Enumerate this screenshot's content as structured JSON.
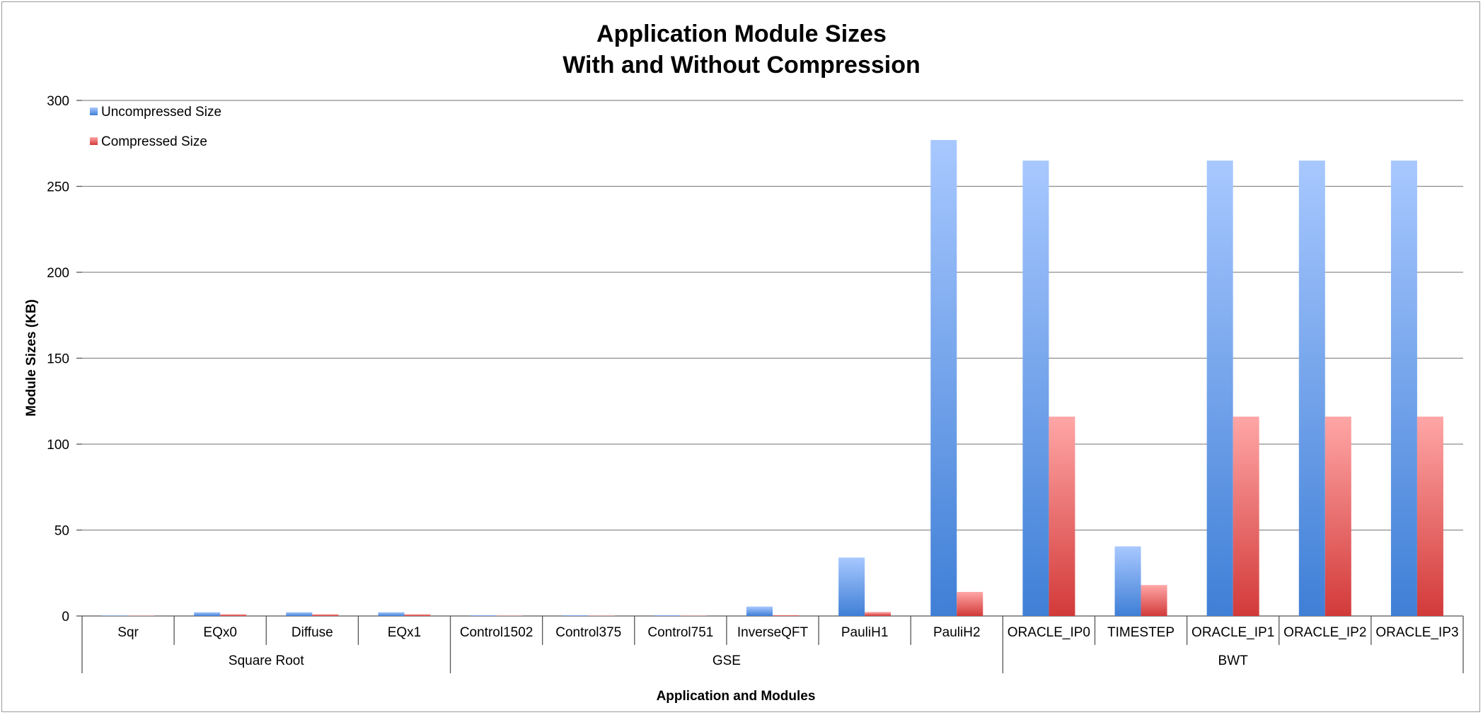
{
  "chart_data": {
    "type": "bar",
    "title": [
      "Application Module Sizes",
      "With and Without Compression"
    ],
    "xlabel": "Application and Modules",
    "ylabel": "Module Sizes (KB)",
    "ylim": [
      0,
      300
    ],
    "yticks": [
      0,
      50,
      100,
      150,
      200,
      250,
      300
    ],
    "grid": true,
    "legend_position": "top-left",
    "categories": [
      "Sqr",
      "EQx0",
      "Diffuse",
      "EQx1",
      "Control1502",
      "Control375",
      "Control751",
      "InverseQFT",
      "PauliH1",
      "PauliH2",
      "ORACLE_IP0",
      "TIMESTEP",
      "ORACLE_IP1",
      "ORACLE_IP2",
      "ORACLE_IP3"
    ],
    "groups": [
      {
        "name": "Square Root",
        "count": 4
      },
      {
        "name": "GSE",
        "count": 6
      },
      {
        "name": "BWT",
        "count": 5
      }
    ],
    "series": [
      {
        "name": "Uncompressed Size",
        "color": "#4a86d8",
        "color_light": "#a8c8ff",
        "values": [
          0.3,
          2.2,
          2.2,
          2.2,
          0.4,
          0.4,
          0.4,
          5.5,
          34,
          277,
          265,
          40.5,
          265,
          265,
          265
        ]
      },
      {
        "name": "Compressed Size",
        "color": "#d9403f",
        "color_light": "#ffa6a6",
        "values": [
          0.2,
          1.0,
          1.0,
          1.0,
          0.2,
          0.2,
          0.2,
          0.5,
          2.3,
          14,
          116,
          18,
          116,
          116,
          116
        ]
      }
    ]
  }
}
